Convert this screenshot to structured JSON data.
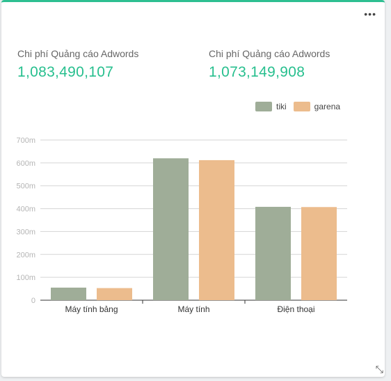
{
  "widget": {
    "menu_icon": "more-dots-icon",
    "resize_icon": "resize-icon"
  },
  "metrics": [
    {
      "label": "Chi phí Quảng cáo Adwords",
      "value": "1,083,490,107"
    },
    {
      "label": "Chi phí Quảng cáo Adwords",
      "value": "1,073,149,908"
    }
  ],
  "colors": {
    "accent": "#27bf8e",
    "tiki": "#9fad98",
    "garena": "#ecbc8d"
  },
  "chart_data": {
    "type": "bar",
    "categories": [
      "Máy tính bảng",
      "Máy tính",
      "Điện thoại"
    ],
    "series": [
      {
        "name": "tiki",
        "values": [
          55,
          620,
          408
        ]
      },
      {
        "name": "garena",
        "values": [
          53,
          612,
          407
        ]
      }
    ],
    "yticks": [
      "0",
      "100m",
      "200m",
      "300m",
      "400m",
      "500m",
      "600m",
      "700m"
    ],
    "ylim": [
      0,
      700
    ],
    "grid": true,
    "legend": "top-right"
  }
}
